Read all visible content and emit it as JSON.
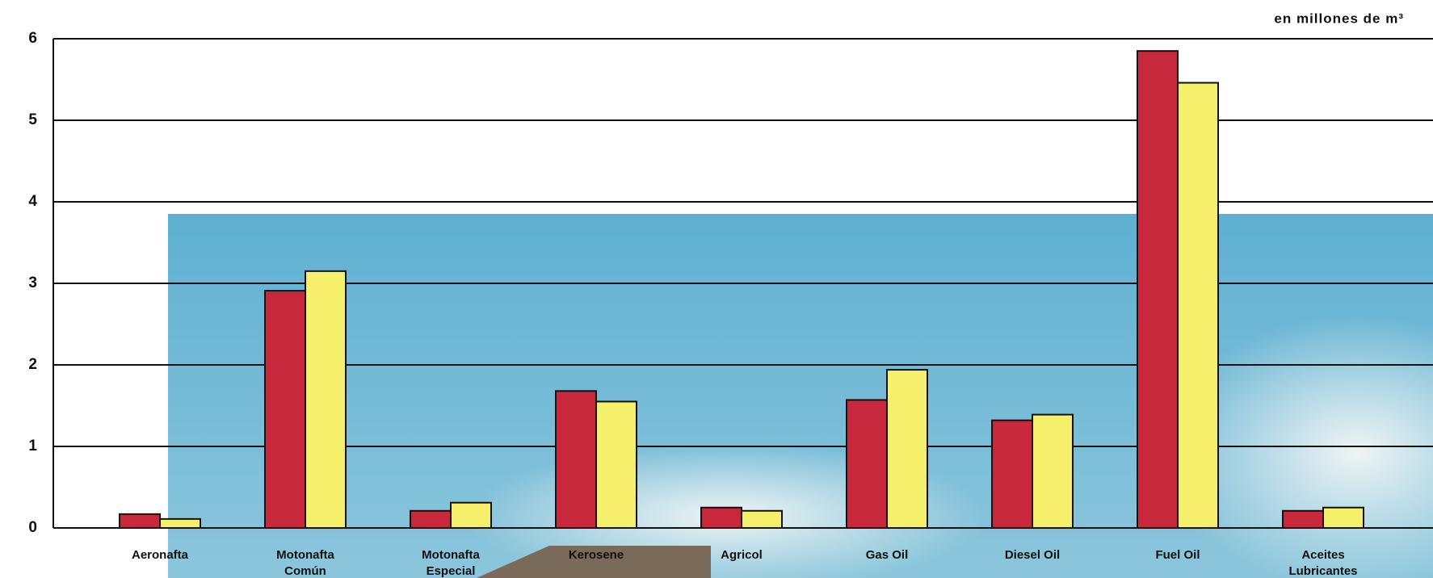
{
  "chart_data": {
    "type": "bar",
    "unit_label": "en millones de m³",
    "categories": [
      [
        "Aeronafta"
      ],
      [
        "Motonafta",
        "Común"
      ],
      [
        "Motonafta",
        "Especial"
      ],
      [
        "Kerosene"
      ],
      [
        "Agricol"
      ],
      [
        "Gas Oil"
      ],
      [
        "Diesel Oil"
      ],
      [
        "Fuel Oil"
      ],
      [
        "Aceites",
        "Lubricantes"
      ]
    ],
    "series": [
      {
        "color": "#c8283c",
        "values": [
          0.17,
          2.91,
          0.21,
          1.68,
          0.25,
          1.57,
          1.32,
          5.85,
          0.21
        ]
      },
      {
        "color": "#f4f06a",
        "values": [
          0.11,
          3.15,
          0.31,
          1.55,
          0.21,
          1.94,
          1.39,
          5.46,
          0.25
        ]
      }
    ],
    "ylim": [
      0,
      6
    ],
    "yticks": [
      0,
      1,
      2,
      3,
      4,
      5,
      6
    ],
    "grid": true
  }
}
